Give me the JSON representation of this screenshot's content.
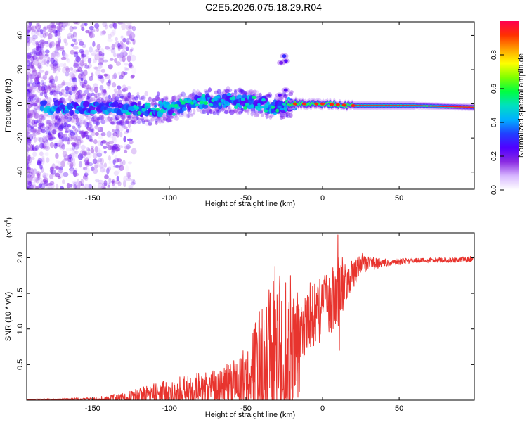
{
  "page_title": "C2E5.2026.075.18.29.R04",
  "chart_data": [
    {
      "type": "heatmap",
      "title": "C2E5.2026.075.18.29.R04",
      "xlabel": "Height of straight line (km)",
      "ylabel": "Frequency (Hz)",
      "xlim": [
        -193,
        99
      ],
      "ylim": [
        -50,
        48
      ],
      "x_ticks": [
        -150,
        -100,
        -50,
        0,
        50
      ],
      "y_ticks": [
        -40,
        -20,
        0,
        20,
        40
      ],
      "colorbar": {
        "label": "Normalized spectral amplitude",
        "range": [
          0,
          1
        ],
        "ticks": [
          0.0,
          0.2,
          0.4,
          0.6,
          0.8
        ],
        "colormap": [
          "#ffffff",
          "#d7b7ff",
          "#8a2be2",
          "#5000ff",
          "#2040ff",
          "#00b0ff",
          "#00e0c0",
          "#00ff40",
          "#80ff00",
          "#ffff00",
          "#ffa000",
          "#ff3000",
          "#ff0050"
        ]
      },
      "ridge_centerline": [
        {
          "x": -190,
          "y": -2
        },
        {
          "x": -150,
          "y": -3
        },
        {
          "x": -120,
          "y": -3
        },
        {
          "x": -100,
          "y": -3
        },
        {
          "x": -80,
          "y": 1
        },
        {
          "x": -60,
          "y": 2
        },
        {
          "x": -40,
          "y": 0
        },
        {
          "x": -30,
          "y": -2
        },
        {
          "x": -20,
          "y": 0
        },
        {
          "x": 0,
          "y": 0
        },
        {
          "x": 20,
          "y": -1
        },
        {
          "x": 60,
          "y": -1
        },
        {
          "x": 99,
          "y": -2
        }
      ],
      "features": [
        {
          "label": "harmonic",
          "x": -25,
          "y": 28,
          "intensity": 0.3
        },
        {
          "label": "harmonic",
          "x": -24,
          "y": 25,
          "intensity": 0.25
        },
        {
          "label": "harmonic",
          "x": -27,
          "y": 24,
          "intensity": 0.2
        },
        {
          "label": "harmonic",
          "x": -24,
          "y": 8,
          "intensity": 0.25
        },
        {
          "label": "harmonic",
          "x": -28,
          "y": 5,
          "intensity": 0.25
        }
      ]
    },
    {
      "type": "line",
      "xlabel": "Height of straight line (km)",
      "ylabel": "SNR (10 * v/v)",
      "y_multiplier_label": "(x10",
      "y_multiplier_exponent": "4",
      "y_multiplier_close": ")",
      "xlim": [
        -193,
        99
      ],
      "ylim": [
        0,
        23500
      ],
      "x_ticks": [
        -150,
        -100,
        -50,
        0,
        50
      ],
      "y_ticks": [
        0.5,
        1.0,
        1.5,
        2.0
      ],
      "y_tick_labels": [
        "0.5",
        "1.0",
        "1.5",
        "2.0"
      ],
      "series": [
        {
          "name": "SNR",
          "color": "#e8342e",
          "envelope": [
            {
              "x": -193,
              "base": 80,
              "amp": 80
            },
            {
              "x": -150,
              "base": 150,
              "amp": 250
            },
            {
              "x": -130,
              "base": 300,
              "amp": 800
            },
            {
              "x": -110,
              "base": 800,
              "amp": 1800
            },
            {
              "x": -90,
              "base": 1300,
              "amp": 2400
            },
            {
              "x": -70,
              "base": 1800,
              "amp": 2800
            },
            {
              "x": -55,
              "base": 2500,
              "amp": 3800
            },
            {
              "x": -45,
              "base": 4000,
              "amp": 6500
            },
            {
              "x": -35,
              "base": 5000,
              "amp": 10000
            },
            {
              "x": -25,
              "base": 5500,
              "amp": 11500
            },
            {
              "x": -20,
              "base": 6000,
              "amp": 10000
            },
            {
              "x": -15,
              "base": 9000,
              "amp": 5000
            },
            {
              "x": -5,
              "base": 12000,
              "amp": 5000
            },
            {
              "x": 5,
              "base": 14000,
              "amp": 5000
            },
            {
              "x": 10,
              "base": 15000,
              "amp": 6000
            },
            {
              "x": 15,
              "base": 16500,
              "amp": 3000
            },
            {
              "x": 25,
              "base": 19000,
              "amp": 1500
            },
            {
              "x": 40,
              "base": 19300,
              "amp": 600
            },
            {
              "x": 60,
              "base": 19600,
              "amp": 400
            },
            {
              "x": 80,
              "base": 19700,
              "amp": 400
            },
            {
              "x": 99,
              "base": 19800,
              "amp": 500
            }
          ],
          "peaks": [
            {
              "x": -35,
              "y": 15500
            },
            {
              "x": -31,
              "y": 18800
            },
            {
              "x": -29,
              "y": 15000
            },
            {
              "x": -24,
              "y": 16500
            },
            {
              "x": -21,
              "y": 17500
            },
            {
              "x": -18,
              "y": 12000
            },
            {
              "x": -8,
              "y": 16500
            },
            {
              "x": 10,
              "y": 23200
            },
            {
              "x": 13,
              "y": 20000
            },
            {
              "x": 26,
              "y": 20600
            }
          ],
          "dips": [
            {
              "x": -16,
              "y": 400
            },
            {
              "x": -15,
              "y": 1200
            },
            {
              "x": 11,
              "y": 7000
            },
            {
              "x": -38,
              "y": 1500
            }
          ]
        }
      ]
    }
  ]
}
